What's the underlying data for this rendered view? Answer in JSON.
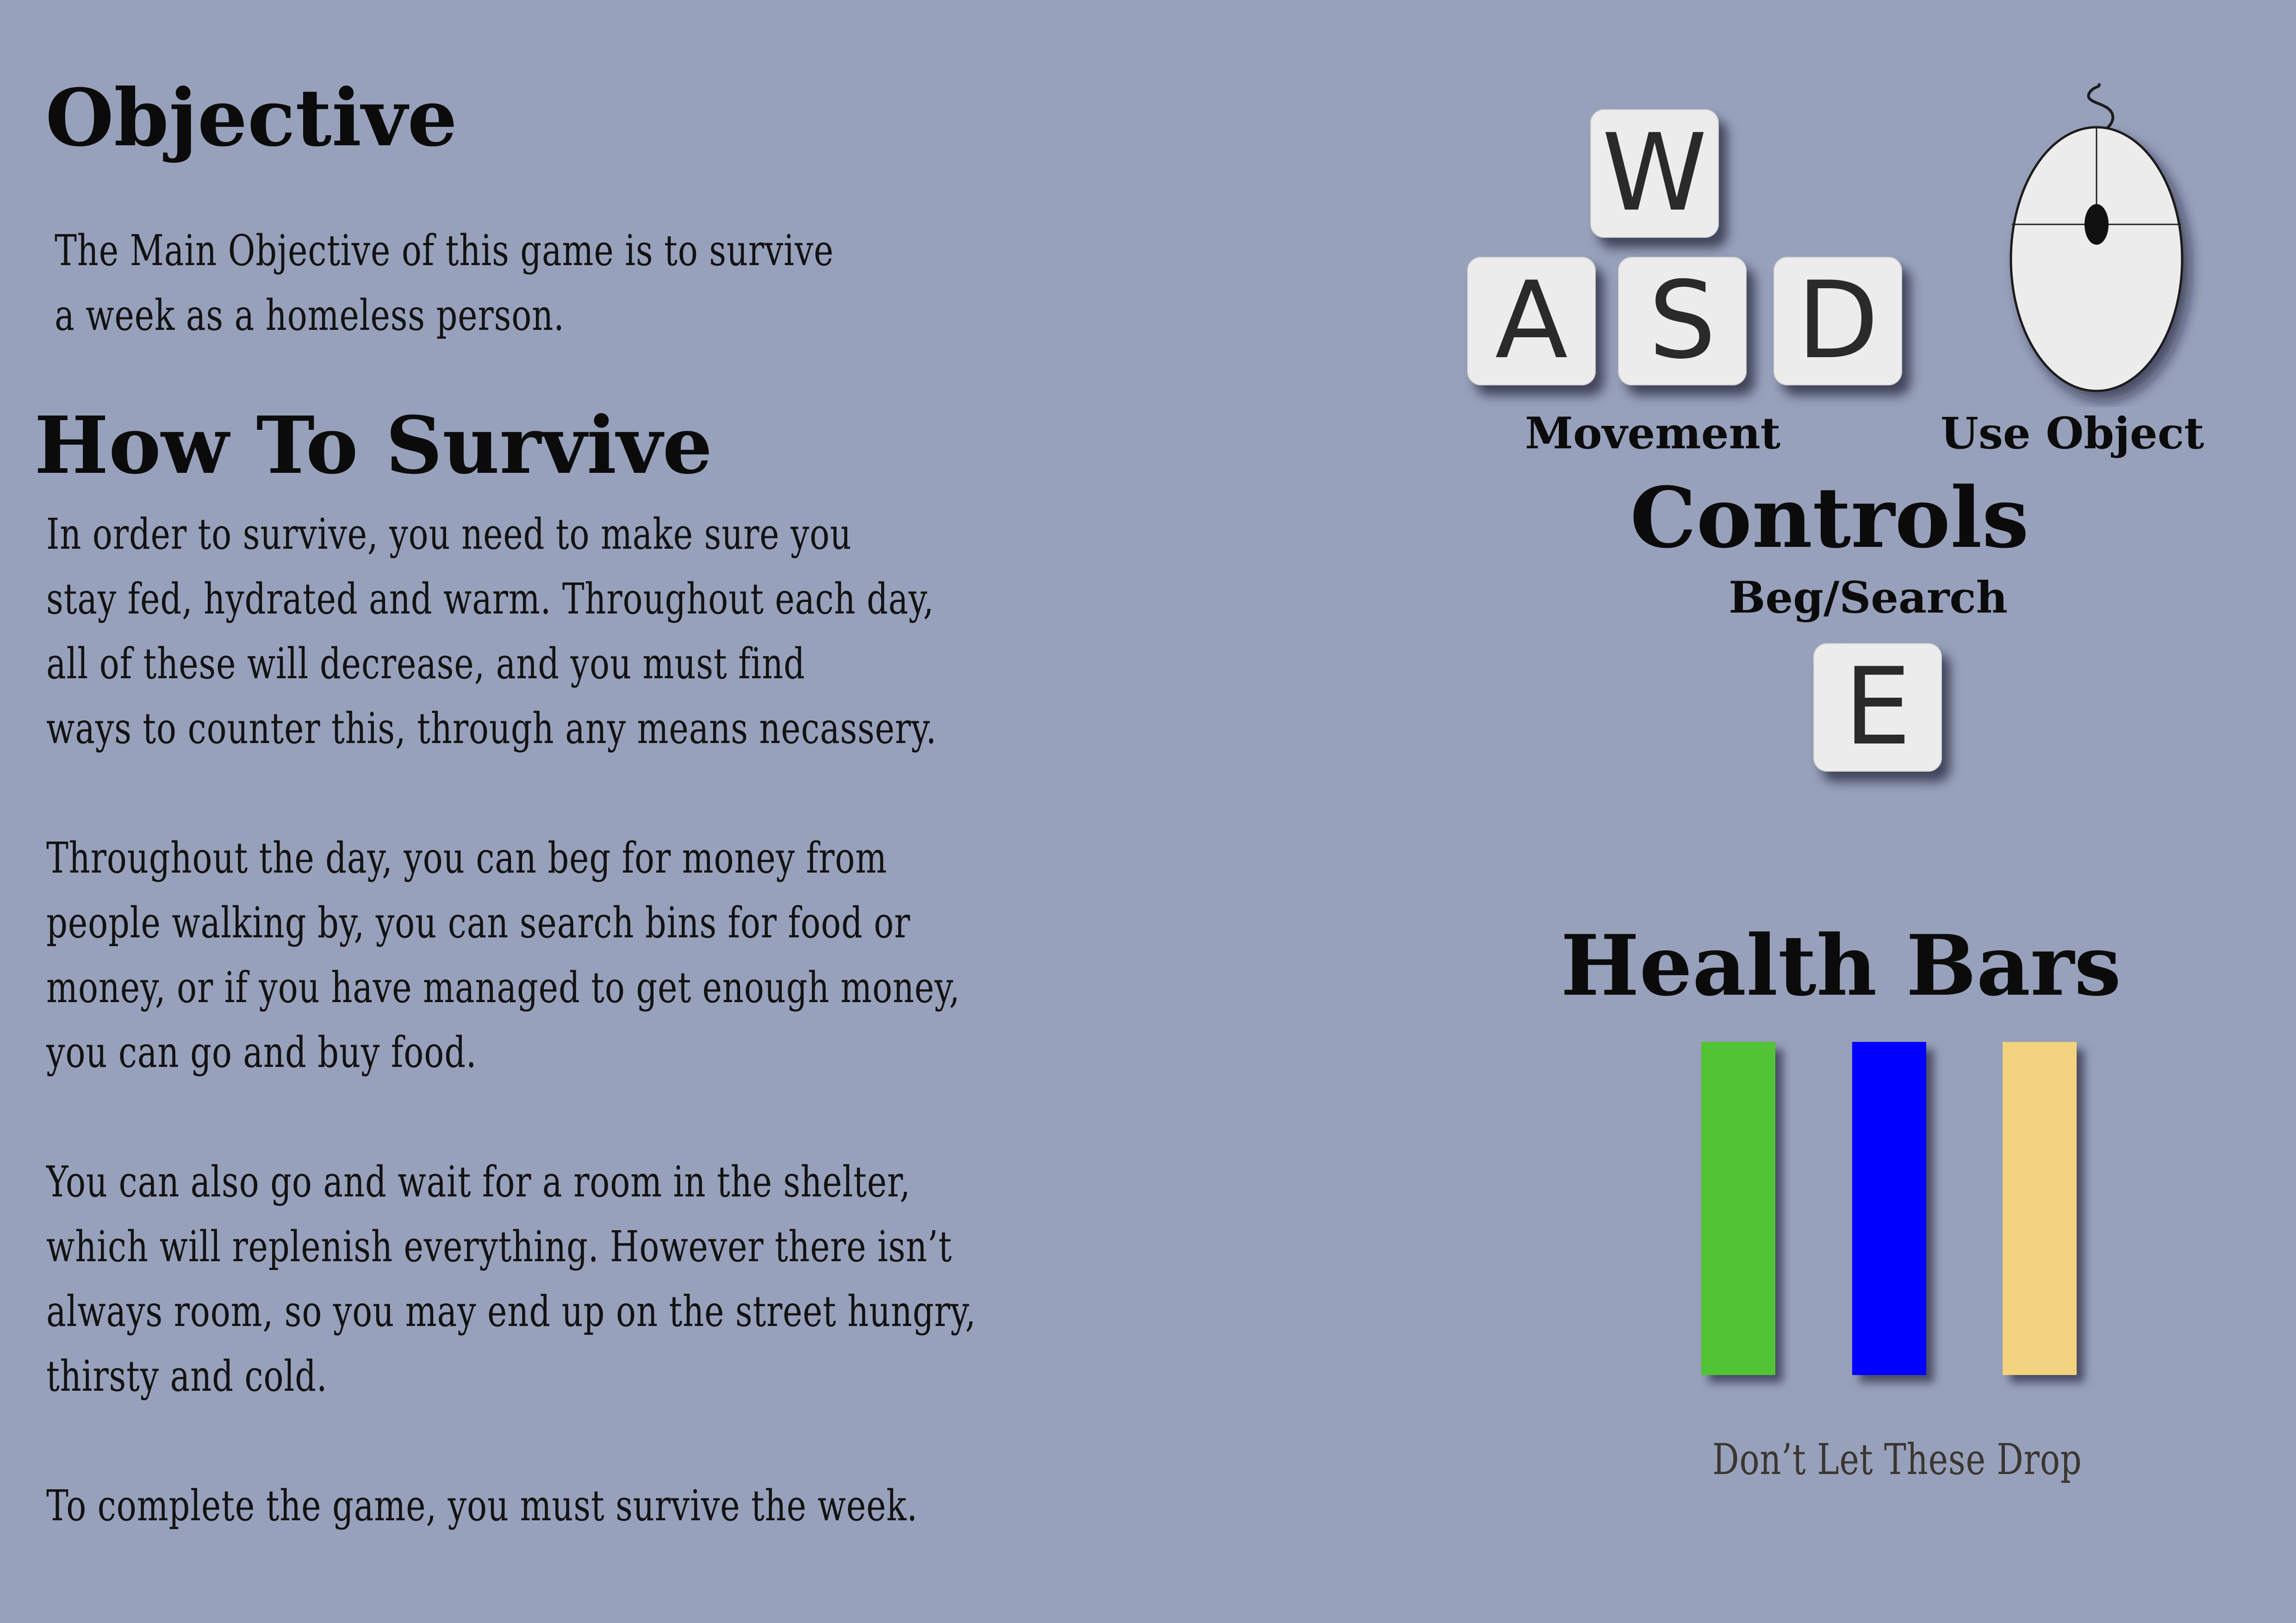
{
  "objective": {
    "heading": "Objective",
    "text": [
      "The Main Objective of this game is to survive",
      "a week as a homeless person."
    ]
  },
  "survive": {
    "heading": "How To Survive",
    "paragraphs": [
      [
        "In order to survive, you need to make sure you",
        "stay fed, hydrated and warm. Throughout each day,",
        "all of these will decrease, and you must find",
        "ways to counter this, through any means necassery."
      ],
      [
        "Throughout the day, you can beg for money from",
        "people walking by, you can search bins for food or",
        "money, or if you have managed to get enough money,",
        "you can go and buy food."
      ],
      [
        "You can also go and wait for a room in the shelter,",
        "which will replenish everything. However there isn’t",
        "always room, so you may end up on the street hungry,",
        "thirsty and cold."
      ],
      [
        "To complete the game, you must survive the week."
      ]
    ]
  },
  "controls": {
    "heading": "Controls",
    "keys": {
      "w": "W",
      "a": "A",
      "s": "S",
      "d": "D",
      "e": "E"
    },
    "movement_label": "Movement",
    "use_object_label": "Use Object",
    "beg_search_label": "Beg/Search",
    "mouse_icon": "mouse-icon"
  },
  "health": {
    "heading": "Health Bars",
    "bars": [
      {
        "color": "#52c334"
      },
      {
        "color": "#0000ff"
      },
      {
        "color": "#f2d27e"
      }
    ],
    "caption": "Don’t Let These Drop"
  }
}
